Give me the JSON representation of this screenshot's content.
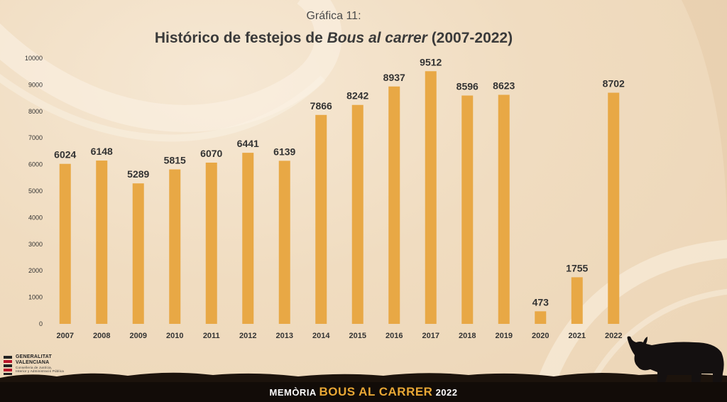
{
  "header": {
    "kicker": "Gráfica 11:",
    "title_prefix": "Histórico de festejos de ",
    "title_italic": "Bous al carrer",
    "title_suffix": " (2007-2022)"
  },
  "footer": {
    "prefix": "MEMÒRIA ",
    "highlight": "BOUS AL CARRER",
    "suffix": " 2022"
  },
  "logo": {
    "line1": "GENERALITAT",
    "line2": "VALENCIANA",
    "sub1": "Conselleria de Justícia,",
    "sub2": "Interior y Administració Pública"
  },
  "colors": {
    "bar": "#e8a845",
    "footer_accent": "#e8a735"
  },
  "chart_data": {
    "type": "bar",
    "title": "Histórico de festejos de Bous al carrer (2007-2022)",
    "categories": [
      "2007",
      "2008",
      "2009",
      "2010",
      "2011",
      "2012",
      "2013",
      "2014",
      "2015",
      "2016",
      "2017",
      "2018",
      "2019",
      "2020",
      "2021",
      "2022"
    ],
    "values": [
      6024,
      6148,
      5289,
      5815,
      6070,
      6441,
      6139,
      7866,
      8242,
      8937,
      9512,
      8596,
      8623,
      473,
      1755,
      8702
    ],
    "ylim": [
      0,
      10000
    ],
    "yticks": [
      0,
      1000,
      2000,
      3000,
      4000,
      5000,
      6000,
      7000,
      8000,
      9000,
      10000
    ],
    "grid": false,
    "legend": "none",
    "data_labels": true
  }
}
